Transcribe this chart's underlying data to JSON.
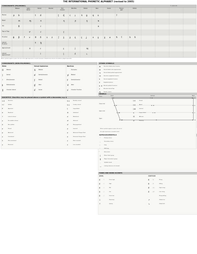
{
  "title": "THE INTERNATIONAL PHONETIC ALPHABET (revised to 2005)",
  "bg": "#f0efe8",
  "white": "#ffffff",
  "header_bg": "#c8c8c4",
  "row_bg_odd": "#e8e8e4",
  "row_bg_even": "#d8d8d4",
  "shaded": "#b8b8b4",
  "border": "#888888",
  "text": "#111111"
}
